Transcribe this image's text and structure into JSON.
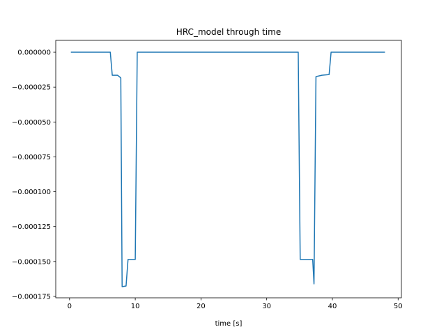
{
  "chart_data": {
    "type": "line",
    "title": "HRC_model through time",
    "xlabel": "time [s]",
    "ylabel": "",
    "xlim": [
      -2.1,
      50.5
    ],
    "ylim": [
      -0.000176,
      8.5e-06
    ],
    "x_ticks": [
      0,
      10,
      20,
      30,
      40,
      50
    ],
    "x_tick_labels": [
      "0",
      "10",
      "20",
      "30",
      "40",
      "50"
    ],
    "y_ticks": [
      0.0,
      -2.5e-05,
      -5e-05,
      -7.5e-05,
      -0.0001,
      -0.000125,
      -0.00015,
      -0.000175
    ],
    "y_tick_labels": [
      "0.000000",
      "−0.000025",
      "−0.000050",
      "−0.000075",
      "−0.000100",
      "−0.000125",
      "−0.000150",
      "−0.000175"
    ],
    "grid": false,
    "legend": "none",
    "line_color": "#1f77b4",
    "series": [
      {
        "x": [
          0.2,
          6.2,
          6.5,
          7.3,
          7.7,
          7.8,
          8.0,
          8.6,
          8.9,
          10.0,
          10.3,
          12.5,
          15.0,
          17.5,
          20.0,
          22.5,
          25.0,
          27.0,
          27.3,
          30.0,
          32.0,
          32.3,
          34.8,
          35.1,
          37.0,
          37.2,
          37.5,
          38.4,
          39.5,
          39.8,
          48.0
        ],
        "y": [
          0.0,
          0.0,
          -1.65e-05,
          -1.65e-05,
          -1.8e-05,
          -1.85e-05,
          -0.000168,
          -0.0001675,
          -0.0001485,
          -0.0001485,
          0.0,
          0.0,
          0.0,
          0.0,
          0.0,
          0.0,
          0.0,
          0.0,
          0.0,
          0.0,
          0.0,
          0.0,
          0.0,
          -0.0001485,
          -0.0001485,
          -0.000166,
          -1.75e-05,
          -1.65e-05,
          -1.6e-05,
          0.0,
          0.0
        ]
      }
    ]
  }
}
